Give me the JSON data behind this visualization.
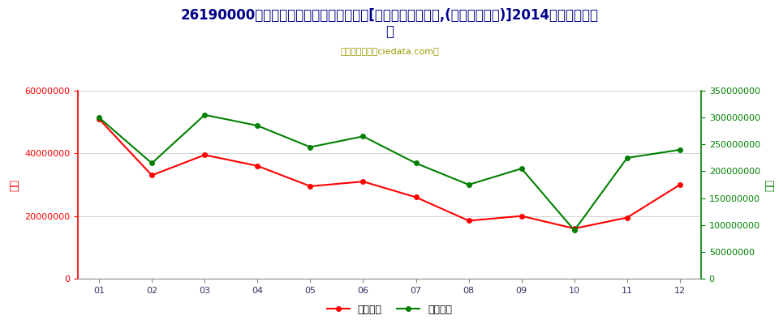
{
  "title_line1": "26190000燕渣、浮渣、氧化皮及其他废料[冶炼锆铁所产生的,(粒状燕渣除外)]2014年进口月度走",
  "title_line2": "势",
  "subtitle": "进出口服务网（ciedata.com）",
  "months": [
    "01",
    "02",
    "03",
    "04",
    "05",
    "06",
    "07",
    "08",
    "09",
    "10",
    "11",
    "12"
  ],
  "import_usd": [
    51000000,
    33000000,
    39500000,
    36000000,
    29500000,
    31000000,
    26000000,
    18500000,
    20000000,
    16000000,
    19500000,
    30000000
  ],
  "import_qty": [
    300000000,
    215000000,
    305000000,
    285000000,
    245000000,
    265000000,
    215000000,
    175000000,
    205000000,
    90000000,
    225000000,
    240000000
  ],
  "left_axis_label": "金额",
  "right_axis_label": "数量",
  "usd_color": "#FF0000",
  "qty_color": "#008000",
  "left_ylim": [
    0,
    60000000
  ],
  "right_ylim": [
    0,
    350000000
  ],
  "left_yticks": [
    0,
    20000000,
    40000000,
    60000000
  ],
  "right_yticks": [
    0,
    50000000,
    100000000,
    150000000,
    200000000,
    250000000,
    300000000,
    350000000
  ],
  "legend_usd": "进口美元",
  "legend_qty": "进口数量",
  "bg_color": "#FFFFFF",
  "grid_color": "#CCCCCC",
  "title_color": "#00008B",
  "subtitle_color": "#999900",
  "title_fontsize": 12,
  "subtitle_fontsize": 8,
  "axis_label_fontsize": 9,
  "tick_fontsize": 8,
  "legend_fontsize": 9
}
